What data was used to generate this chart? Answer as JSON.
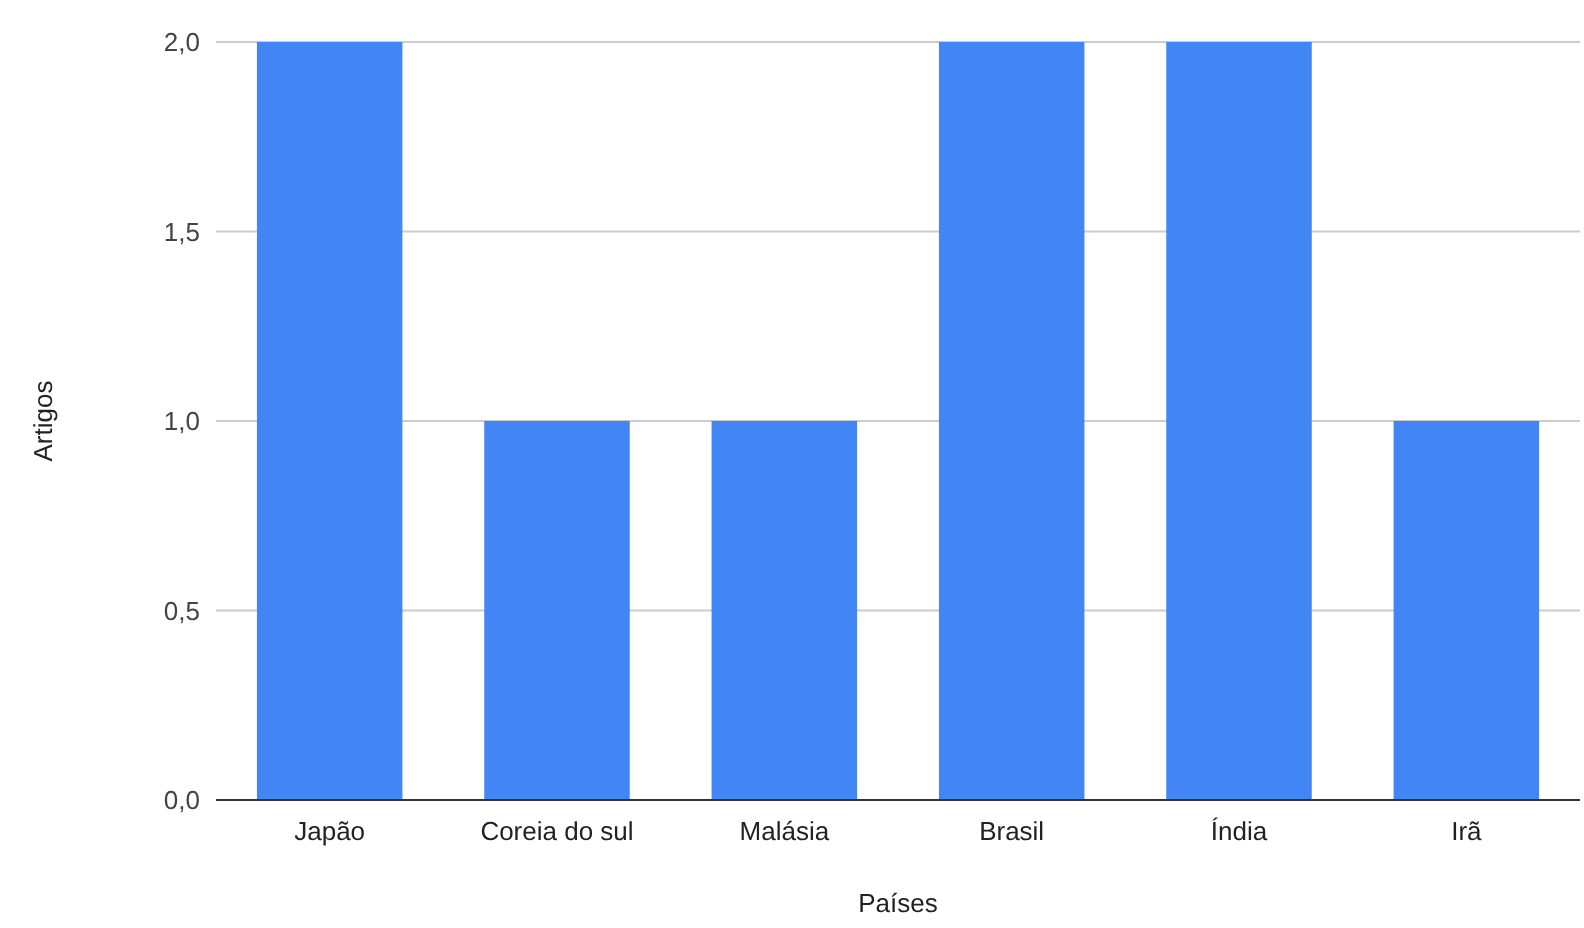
{
  "chart_data": {
    "type": "bar",
    "xlabel": "Países",
    "ylabel": "Artigos",
    "categories": [
      "Japão",
      "Coreia do sul",
      "Malásia",
      "Brasil",
      "Índia",
      "Irã"
    ],
    "values": [
      2,
      1,
      1,
      2,
      2,
      1
    ],
    "color": "#4285f4",
    "ylim": [
      0,
      2
    ],
    "yticks": [
      {
        "value": 0,
        "label": "0,0"
      },
      {
        "value": 0.5,
        "label": "0,5"
      },
      {
        "value": 1,
        "label": "1,0"
      },
      {
        "value": 1.5,
        "label": "1,5"
      },
      {
        "value": 2,
        "label": "2,0"
      }
    ],
    "grid": "y"
  }
}
